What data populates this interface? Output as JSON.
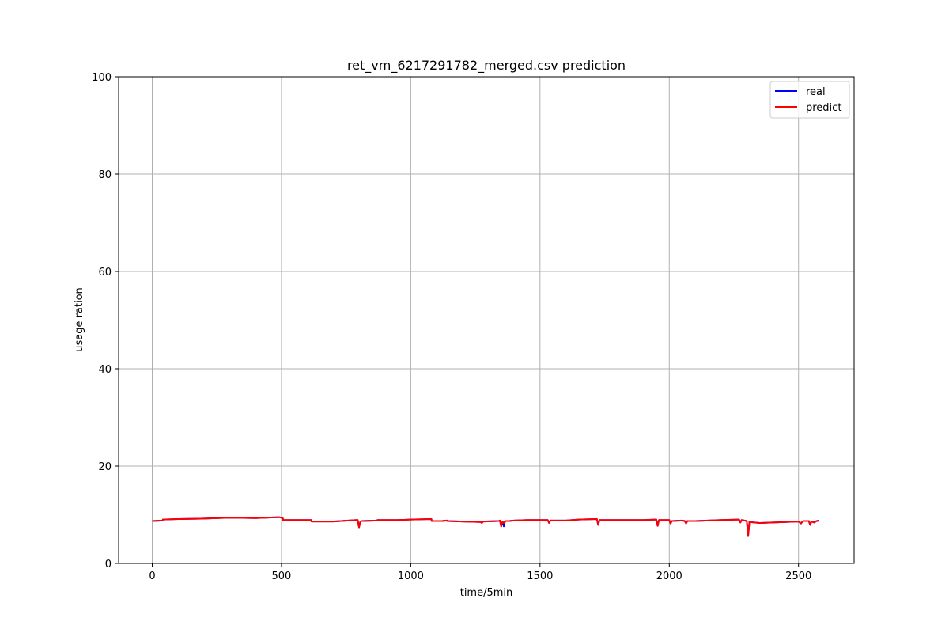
{
  "chart_data": {
    "type": "line",
    "title": "ret_vm_6217291782_merged.csv prediction",
    "xlabel": "time/5min",
    "ylabel": "usage ration",
    "xlim": [
      -130,
      2715
    ],
    "ylim": [
      0,
      100
    ],
    "xticks": [
      0,
      500,
      1000,
      1500,
      2000,
      2500
    ],
    "yticks": [
      0,
      20,
      40,
      60,
      80,
      100
    ],
    "grid": true,
    "legend_position": "top-right",
    "series": [
      {
        "name": "real",
        "color": "#0000ff",
        "x": [
          0,
          40,
          41,
          100,
          200,
          300,
          400,
          490,
          505,
          506,
          600,
          615,
          616,
          700,
          790,
          795,
          800,
          805,
          810,
          870,
          871,
          950,
          1000,
          1080,
          1081,
          1120,
          1140,
          1141,
          1200,
          1270,
          1275,
          1280,
          1340,
          1345,
          1350,
          1355,
          1360,
          1365,
          1370,
          1380,
          1400,
          1450,
          1530,
          1535,
          1540,
          1600,
          1650,
          1720,
          1725,
          1730,
          1800,
          1900,
          1950,
          1955,
          1960,
          1990,
          2000,
          2005,
          2010,
          2050,
          2060,
          2065,
          2070,
          2100,
          2200,
          2270,
          2275,
          2280,
          2290,
          2300,
          2305,
          2310,
          2350,
          2400,
          2450,
          2500,
          2510,
          2515,
          2520,
          2540,
          2545,
          2550,
          2560,
          2570,
          2580
        ],
        "values": [
          8.7,
          8.8,
          9.0,
          9.1,
          9.2,
          9.4,
          9.3,
          9.5,
          9.3,
          8.9,
          8.9,
          8.9,
          8.6,
          8.6,
          8.9,
          8.9,
          7.4,
          8.6,
          8.7,
          8.8,
          8.9,
          8.9,
          9.0,
          9.1,
          8.7,
          8.7,
          8.8,
          8.7,
          8.6,
          8.5,
          8.3,
          8.6,
          8.7,
          8.8,
          7.6,
          8.6,
          7.6,
          8.7,
          8.7,
          8.7,
          8.8,
          8.9,
          8.9,
          8.3,
          8.8,
          8.8,
          9.0,
          9.1,
          7.9,
          8.9,
          8.9,
          8.9,
          9.0,
          7.7,
          8.9,
          8.9,
          8.9,
          8.2,
          8.7,
          8.8,
          8.7,
          8.2,
          8.7,
          8.7,
          8.9,
          9.0,
          8.4,
          8.9,
          8.8,
          8.7,
          5.6,
          8.5,
          8.3,
          8.4,
          8.5,
          8.6,
          8.2,
          8.6,
          8.7,
          8.7,
          7.9,
          8.6,
          8.4,
          8.7,
          8.8
        ]
      },
      {
        "name": "predict",
        "color": "#ff0000",
        "x": [
          0,
          40,
          41,
          100,
          200,
          300,
          400,
          490,
          505,
          506,
          600,
          615,
          616,
          700,
          790,
          795,
          800,
          805,
          810,
          870,
          871,
          950,
          1000,
          1080,
          1081,
          1120,
          1140,
          1141,
          1200,
          1270,
          1275,
          1280,
          1340,
          1345,
          1350,
          1355,
          1360,
          1365,
          1370,
          1380,
          1400,
          1450,
          1530,
          1535,
          1540,
          1600,
          1650,
          1720,
          1725,
          1730,
          1800,
          1900,
          1950,
          1955,
          1960,
          1990,
          2000,
          2005,
          2010,
          2050,
          2060,
          2065,
          2070,
          2100,
          2200,
          2270,
          2275,
          2280,
          2290,
          2300,
          2305,
          2310,
          2350,
          2400,
          2450,
          2500,
          2510,
          2515,
          2520,
          2540,
          2545,
          2550,
          2560,
          2570,
          2580
        ],
        "values": [
          8.7,
          8.8,
          9.0,
          9.1,
          9.2,
          9.4,
          9.3,
          9.5,
          9.3,
          8.9,
          8.9,
          8.9,
          8.6,
          8.6,
          8.9,
          8.9,
          7.4,
          8.6,
          8.7,
          8.8,
          8.9,
          8.9,
          9.0,
          9.1,
          8.7,
          8.7,
          8.8,
          8.7,
          8.6,
          8.5,
          8.3,
          8.6,
          8.7,
          8.8,
          7.6,
          8.6,
          8.3,
          8.7,
          8.7,
          8.7,
          8.8,
          8.9,
          8.9,
          8.3,
          8.8,
          8.8,
          9.0,
          9.1,
          7.9,
          8.9,
          8.9,
          8.9,
          9.0,
          7.7,
          8.9,
          8.9,
          8.9,
          8.2,
          8.7,
          8.8,
          8.7,
          8.2,
          8.7,
          8.7,
          8.9,
          9.0,
          8.4,
          8.9,
          8.8,
          8.7,
          5.6,
          8.5,
          8.3,
          8.4,
          8.5,
          8.6,
          8.2,
          8.6,
          8.7,
          8.7,
          7.9,
          8.6,
          8.4,
          8.7,
          8.8
        ]
      }
    ]
  }
}
